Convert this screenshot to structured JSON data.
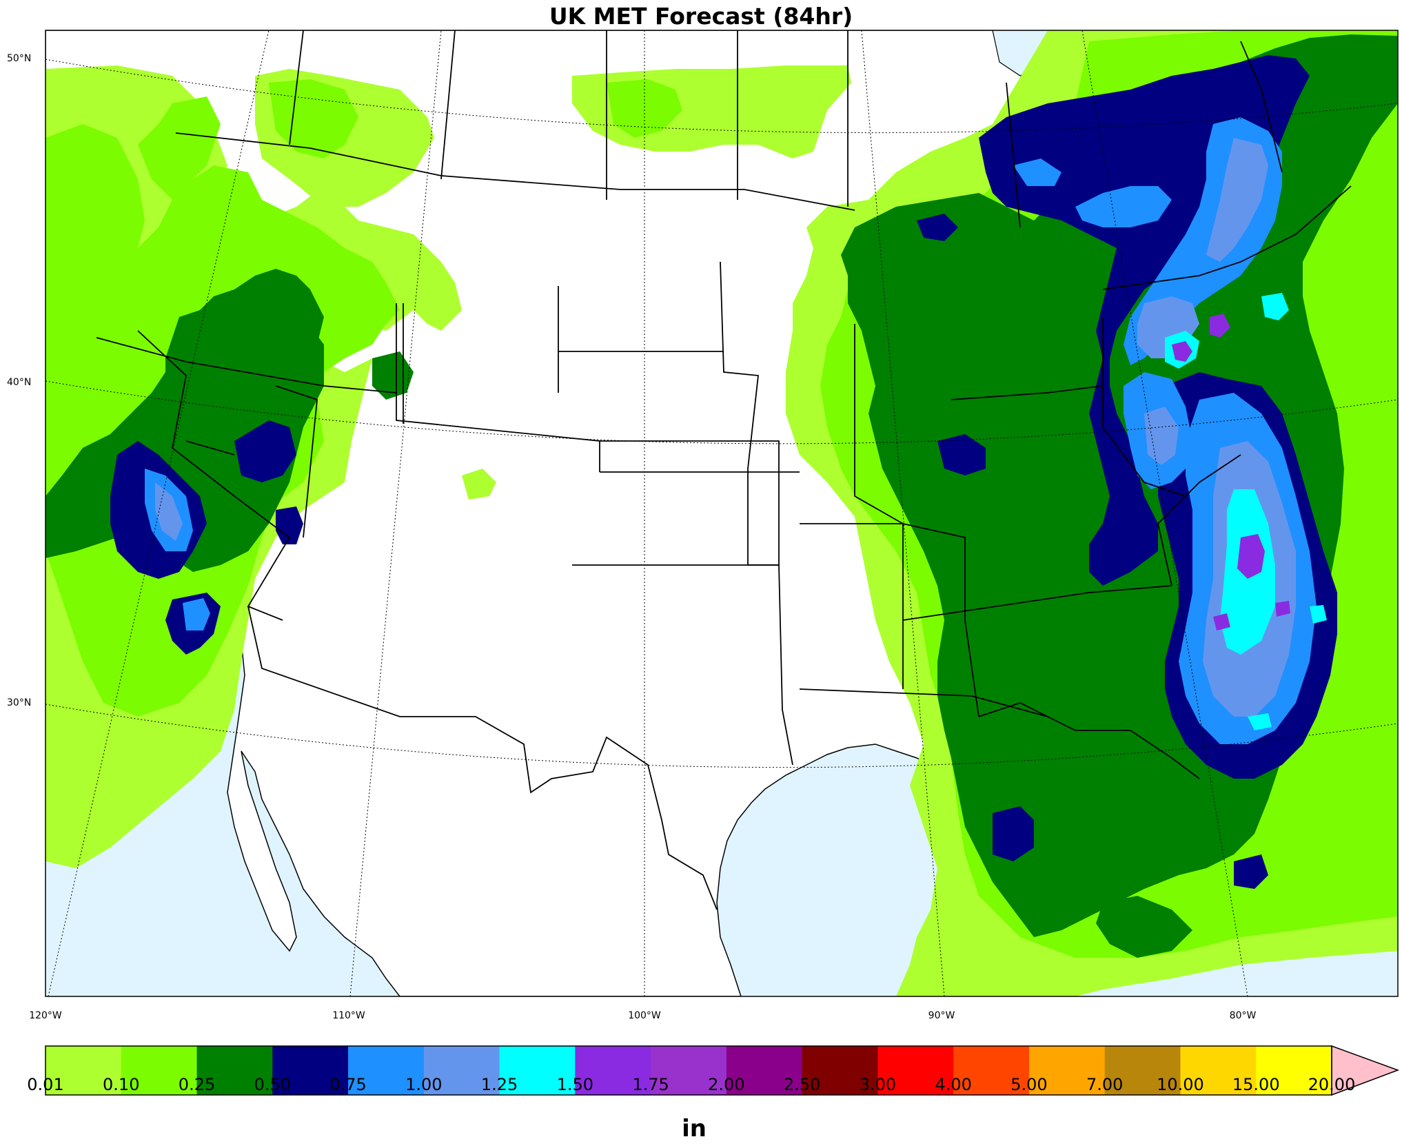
{
  "title": "UK MET Forecast (84hr)",
  "units": "in",
  "lat_labels": [
    "50°N",
    "40°N",
    "30°N"
  ],
  "lon_labels": [
    "120°W",
    "110°W",
    "100°W",
    "90°W",
    "80°W"
  ],
  "colorbar": {
    "ticks": [
      "0.01",
      "0.10",
      "0.25",
      "0.50",
      "0.75",
      "1.00",
      "1.25",
      "1.50",
      "1.75",
      "2.00",
      "2.50",
      "3.00",
      "4.00",
      "5.00",
      "7.00",
      "10.00",
      "15.00",
      "20.00"
    ],
    "colors": [
      "#adff2f",
      "#7cfc00",
      "#008000",
      "#000080",
      "#1e90ff",
      "#6495ed",
      "#00ffff",
      "#8a2be2",
      "#9932cc",
      "#8b008b",
      "#800000",
      "#ff0000",
      "#ff4500",
      "#ffa500",
      "#b8860b",
      "#ffd700",
      "#ffff00"
    ],
    "extend_color": "#ffc0cb"
  },
  "colors": {
    "ocean": "#dff4fe",
    "land": "#ffffff",
    "border": "#000000"
  }
}
